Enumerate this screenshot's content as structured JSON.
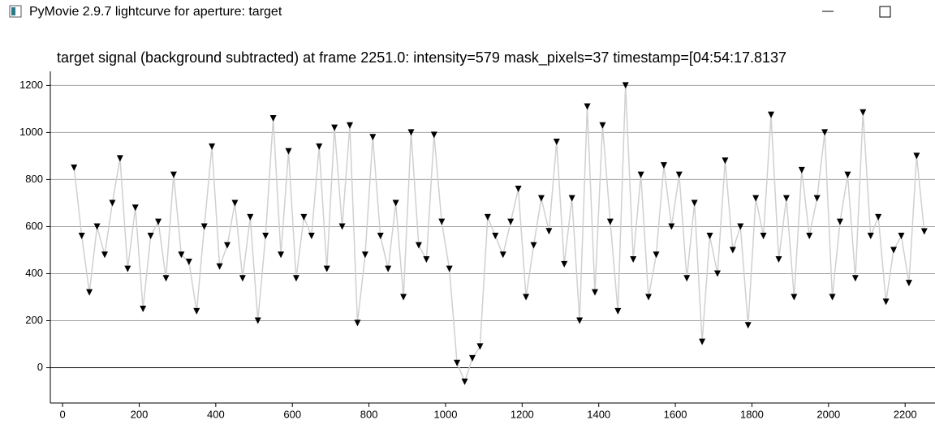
{
  "window": {
    "title": "PyMovie 2.9.7 lightcurve for aperture: target"
  },
  "chart_data": {
    "type": "line",
    "title": "target signal (background subtracted) at frame 2251.0: intensity=579 mask_pixels=37 timestamp=[04:54:17.8137",
    "x": [
      30,
      50,
      70,
      90,
      110,
      130,
      150,
      170,
      190,
      210,
      230,
      250,
      270,
      290,
      310,
      330,
      350,
      370,
      390,
      410,
      430,
      450,
      470,
      490,
      510,
      530,
      550,
      570,
      590,
      610,
      630,
      650,
      670,
      690,
      710,
      730,
      750,
      770,
      790,
      810,
      830,
      850,
      870,
      890,
      910,
      930,
      950,
      970,
      990,
      1010,
      1030,
      1050,
      1070,
      1090,
      1110,
      1130,
      1150,
      1170,
      1190,
      1210,
      1230,
      1250,
      1270,
      1290,
      1310,
      1330,
      1350,
      1370,
      1390,
      1410,
      1430,
      1450,
      1470,
      1490,
      1510,
      1530,
      1550,
      1570,
      1590,
      1610,
      1630,
      1650,
      1670,
      1690,
      1710,
      1730,
      1750,
      1770,
      1790,
      1810,
      1830,
      1850,
      1870,
      1890,
      1910,
      1930,
      1950,
      1970,
      1990,
      2010,
      2030,
      2050,
      2070,
      2090,
      2110,
      2130,
      2150,
      2170,
      2190,
      2210,
      2230,
      2250
    ],
    "values": [
      850,
      560,
      320,
      600,
      480,
      700,
      890,
      420,
      680,
      250,
      560,
      620,
      380,
      820,
      480,
      450,
      240,
      600,
      940,
      430,
      520,
      700,
      380,
      640,
      200,
      560,
      1060,
      480,
      920,
      380,
      640,
      560,
      940,
      420,
      1020,
      600,
      1030,
      190,
      480,
      980,
      560,
      420,
      700,
      300,
      1000,
      520,
      460,
      990,
      620,
      420,
      20,
      -60,
      40,
      90,
      640,
      560,
      480,
      620,
      760,
      300,
      520,
      720,
      580,
      960,
      440,
      720,
      200,
      1110,
      320,
      1030,
      620,
      240,
      1200,
      460,
      820,
      300,
      480,
      860,
      600,
      820,
      380,
      700,
      110,
      560,
      400,
      880,
      500,
      600,
      180,
      720,
      560,
      1075,
      460,
      720,
      300,
      840,
      560,
      720,
      1000,
      300,
      620,
      820,
      380,
      1085,
      560,
      640,
      280,
      500,
      560,
      360,
      900,
      579
    ],
    "color": "#000000",
    "line_color": "#d0d0d0",
    "xlim": [
      -32,
      2278
    ],
    "ylim": [
      -150,
      1260
    ],
    "xticks": [
      0,
      200,
      400,
      600,
      800,
      1000,
      1200,
      1400,
      1600,
      1800,
      2000,
      2200
    ],
    "yticks": [
      0,
      200,
      400,
      600,
      800,
      1000,
      1200
    ],
    "grid": true
  }
}
